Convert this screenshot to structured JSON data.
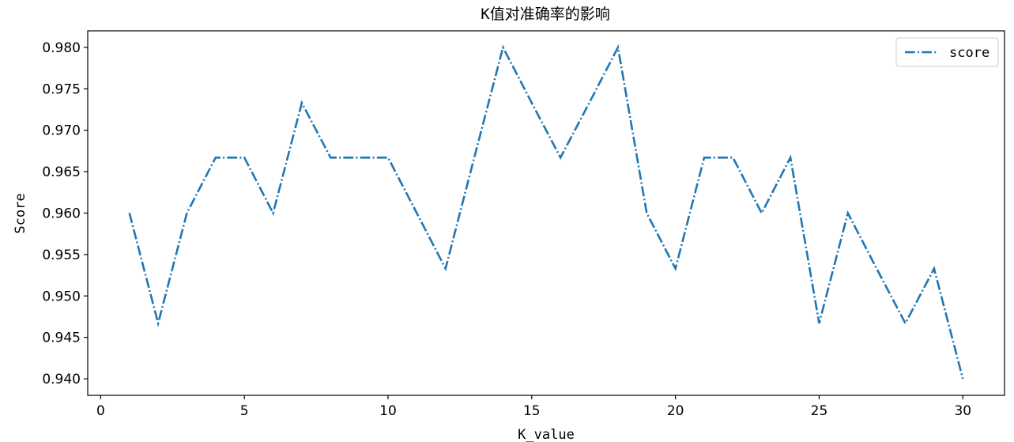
{
  "chart_data": {
    "type": "line",
    "title": "K值对准确率的影响",
    "xlabel": "K_value",
    "ylabel": "Score",
    "xlim": [
      -0.45,
      31.45
    ],
    "ylim": [
      0.938,
      0.982
    ],
    "x_ticks": [
      0,
      5,
      10,
      15,
      20,
      25,
      30
    ],
    "y_ticks": [
      0.94,
      0.945,
      0.95,
      0.955,
      0.96,
      0.965,
      0.97,
      0.975,
      0.98
    ],
    "y_tick_labels": [
      "0.940",
      "0.945",
      "0.950",
      "0.955",
      "0.960",
      "0.965",
      "0.970",
      "0.975",
      "0.980"
    ],
    "grid": false,
    "legend_position": "top-right",
    "line_style": "dash-dot",
    "color": "#1f77b4",
    "x": [
      1,
      2,
      3,
      4,
      5,
      6,
      7,
      8,
      9,
      10,
      11,
      12,
      13,
      14,
      15,
      16,
      17,
      18,
      19,
      20,
      21,
      22,
      23,
      24,
      25,
      26,
      27,
      28,
      29,
      30
    ],
    "series": [
      {
        "name": "score",
        "values": [
          0.96,
          0.9467,
          0.96,
          0.9667,
          0.9667,
          0.96,
          0.9733,
          0.9667,
          0.9667,
          0.9667,
          0.96,
          0.9533,
          0.9667,
          0.98,
          0.9733,
          0.9667,
          0.9733,
          0.98,
          0.96,
          0.9533,
          0.9667,
          0.9667,
          0.96,
          0.9667,
          0.9467,
          0.96,
          0.9533,
          0.9467,
          0.9533,
          0.94
        ]
      }
    ]
  }
}
